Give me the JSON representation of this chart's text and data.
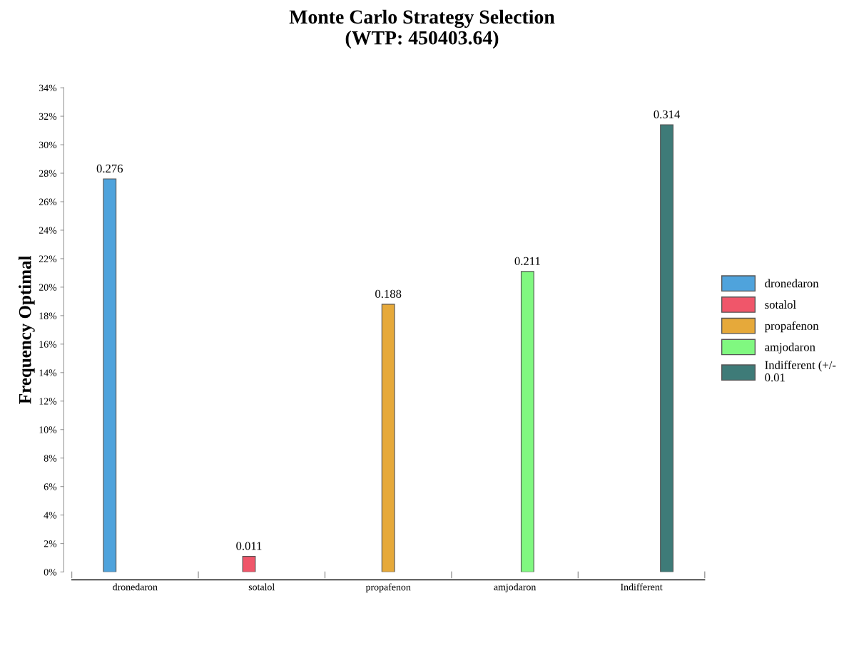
{
  "chart_data": {
    "type": "bar",
    "title": "Monte Carlo Strategy Selection\n(WTP: 450403.64)",
    "ylabel": "Frequency Optimal",
    "categories": [
      "dronedaron",
      "sotalol",
      "propafenon",
      "amjodaron",
      "Indifferent"
    ],
    "series": [
      {
        "name": "dronedaron",
        "color": "#4fa3dc",
        "values": [
          0.276,
          null,
          null,
          null,
          null
        ]
      },
      {
        "name": "sotalol",
        "color": "#f0566a",
        "values": [
          null,
          0.011,
          null,
          null,
          null
        ]
      },
      {
        "name": "propafenon",
        "color": "#e6a93a",
        "values": [
          null,
          null,
          0.188,
          null,
          null
        ]
      },
      {
        "name": "amjodaron",
        "color": "#80f880",
        "values": [
          null,
          null,
          null,
          0.211,
          null
        ]
      },
      {
        "name": "Indifferent (+/- 0.01",
        "color": "#3e7b78",
        "values": [
          null,
          null,
          null,
          null,
          0.314
        ]
      }
    ],
    "ylim": [
      0,
      0.34
    ],
    "yticks": [
      {
        "value": 0,
        "label": "0%"
      },
      {
        "value": 0.02,
        "label": "2%"
      },
      {
        "value": 0.04,
        "label": "4%"
      },
      {
        "value": 0.06,
        "label": "6%"
      },
      {
        "value": 0.08,
        "label": "8%"
      },
      {
        "value": 0.1,
        "label": "10%"
      },
      {
        "value": 0.12,
        "label": "12%"
      },
      {
        "value": 0.14,
        "label": "14%"
      },
      {
        "value": 0.16,
        "label": "16%"
      },
      {
        "value": 0.18,
        "label": "18%"
      },
      {
        "value": 0.2,
        "label": "20%"
      },
      {
        "value": 0.22,
        "label": "22%"
      },
      {
        "value": 0.24,
        "label": "24%"
      },
      {
        "value": 0.26,
        "label": "26%"
      },
      {
        "value": 0.28,
        "label": "28%"
      },
      {
        "value": 0.3,
        "label": "30%"
      },
      {
        "value": 0.32,
        "label": "32%"
      },
      {
        "value": 0.34,
        "label": "34%"
      }
    ],
    "data_labels": true,
    "grid": false,
    "legend": "right"
  }
}
